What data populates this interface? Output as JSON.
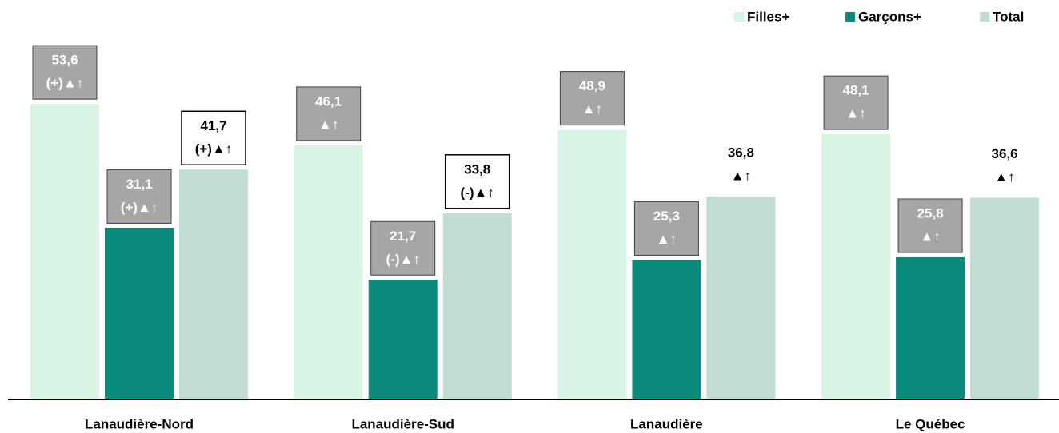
{
  "chart_data": {
    "type": "bar",
    "categories": [
      "Lanaudière-Nord",
      "Lanaudière-Sud",
      "Lanaudière",
      "Le Québec"
    ],
    "series": [
      {
        "name": "Filles+",
        "color": "#d9f4e4",
        "values": [
          53.6,
          46.1,
          48.9,
          48.1
        ],
        "value_labels": [
          "53,6",
          "46,1",
          "48,9",
          "48,1"
        ],
        "annotations": [
          "(+)▲↑",
          "▲↑",
          "▲↑",
          "▲↑"
        ],
        "label_styles": [
          "gray",
          "gray",
          "gray",
          "gray"
        ]
      },
      {
        "name": "Garçons+",
        "color": "#0a8a7a",
        "values": [
          31.1,
          21.7,
          25.3,
          25.8
        ],
        "value_labels": [
          "31,1",
          "21,7",
          "25,3",
          "25,8"
        ],
        "annotations": [
          "(+)▲↑",
          "(-)▲↑",
          "▲↑",
          "▲↑"
        ],
        "label_styles": [
          "gray",
          "gray",
          "gray",
          "gray"
        ]
      },
      {
        "name": "Total",
        "color": "#c0dcd5",
        "values": [
          41.7,
          33.8,
          36.8,
          36.6
        ],
        "value_labels": [
          "41,7",
          "33,8",
          "36,8",
          "36,6"
        ],
        "annotations": [
          "(+)▲↑",
          "(-)▲↑",
          "▲↑",
          "▲↑"
        ],
        "label_styles": [
          "boxed",
          "boxed",
          "plain",
          "plain"
        ]
      }
    ],
    "ylim": [
      0,
      60
    ],
    "legend": "top-right"
  }
}
